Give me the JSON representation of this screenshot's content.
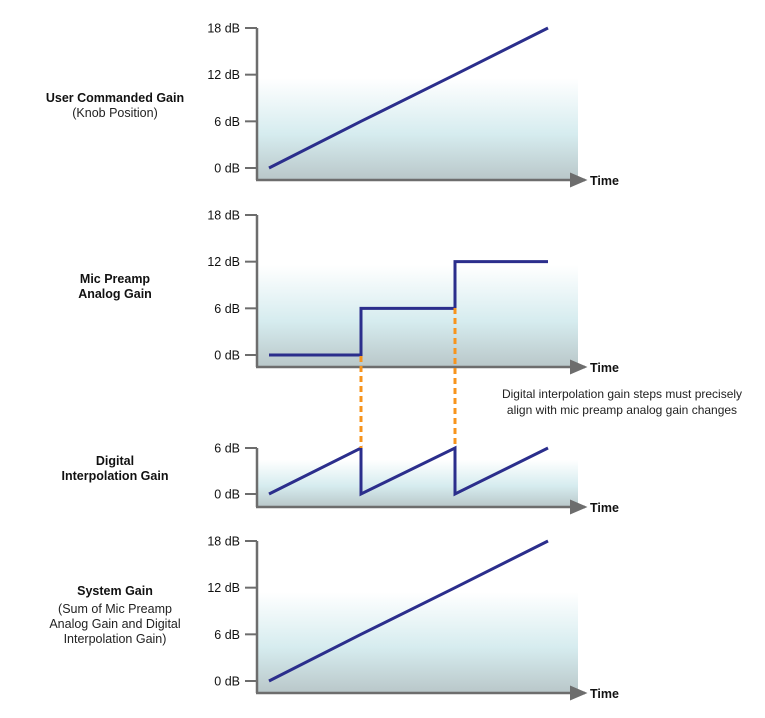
{
  "colors": {
    "line": "#2b2e8c",
    "axis": "#6d6d6d",
    "guide": "#f7941d",
    "fill_top": "#ffffff",
    "fill_mid": "#d4eaee",
    "fill_bottom": "#b8c6c8",
    "text": "#111111"
  },
  "annotation": {
    "line1": "Digital interpolation gain steps must precisely",
    "line2": "align with mic preamp analog gain changes"
  },
  "panels": [
    {
      "title": "User Commanded Gain",
      "subtitle": [
        "(Knob Position)"
      ],
      "xaxis_label": "Time",
      "ticks": [
        "18 dB",
        "12 dB",
        "6 dB",
        "0 dB"
      ]
    },
    {
      "title": [
        "Mic Preamp",
        "Analog Gain"
      ],
      "subtitle": [],
      "xaxis_label": "Time",
      "ticks": [
        "18 dB",
        "12 dB",
        "6 dB",
        "0 dB"
      ]
    },
    {
      "title": [
        "Digital",
        "Interpolation Gain"
      ],
      "subtitle": [],
      "xaxis_label": "Time",
      "ticks": [
        "6 dB",
        "0 dB"
      ]
    },
    {
      "title": "System Gain",
      "subtitle": [
        "(Sum of Mic Preamp",
        "Analog Gain and Digital",
        "Interpolation Gain)"
      ],
      "xaxis_label": "Time",
      "ticks": [
        "18 dB",
        "12 dB",
        "6 dB",
        "0 dB"
      ]
    }
  ],
  "chart_data": [
    {
      "type": "line",
      "title": "User Commanded Gain (Knob Position)",
      "xlabel": "Time",
      "ylabel": "",
      "yticks": [
        "0 dB",
        "6 dB",
        "12 dB",
        "18 dB"
      ],
      "ylim": [
        0,
        18
      ],
      "x": [
        0,
        1,
        2,
        3
      ],
      "values": [
        0,
        6,
        12,
        18
      ]
    },
    {
      "type": "line",
      "title": "Mic Preamp Analog Gain",
      "xlabel": "Time",
      "ylabel": "",
      "yticks": [
        "0 dB",
        "6 dB",
        "12 dB",
        "18 dB"
      ],
      "ylim": [
        0,
        18
      ],
      "x": [
        0,
        1,
        1,
        2,
        2,
        3
      ],
      "values": [
        0,
        0,
        6,
        6,
        12,
        12
      ]
    },
    {
      "type": "line",
      "title": "Digital Interpolation Gain",
      "xlabel": "Time",
      "ylabel": "",
      "yticks": [
        "0 dB",
        "6 dB"
      ],
      "ylim": [
        0,
        6
      ],
      "x": [
        0,
        1,
        1,
        2,
        2,
        3
      ],
      "values": [
        0,
        6,
        0,
        6,
        0,
        6
      ]
    },
    {
      "type": "line",
      "title": "System Gain (Sum of Mic Preamp Analog Gain and Digital Interpolation Gain)",
      "xlabel": "Time",
      "ylabel": "",
      "yticks": [
        "0 dB",
        "6 dB",
        "12 dB",
        "18 dB"
      ],
      "ylim": [
        0,
        18
      ],
      "x": [
        0,
        1,
        2,
        3
      ],
      "values": [
        0,
        6,
        12,
        18
      ]
    }
  ]
}
